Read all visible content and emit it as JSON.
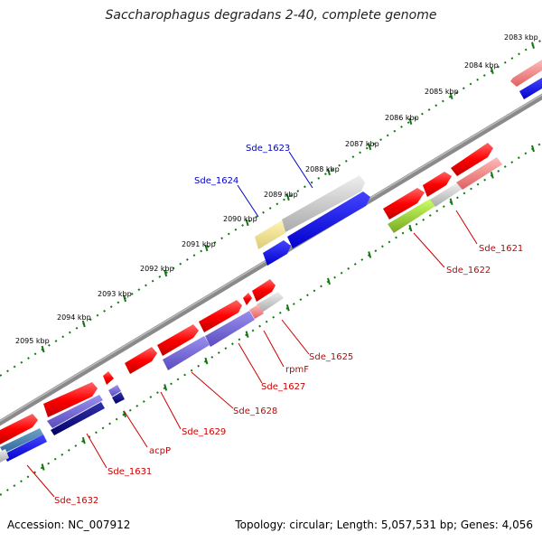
{
  "title": "Saccharophagus degradans 2-40, complete genome",
  "footer": {
    "accession": "Accession: NC_007912",
    "summary": "Topology: circular; Length: 5,057,531 bp; Genes: 4,056"
  },
  "ticks": [
    {
      "label": "2083 kbp"
    },
    {
      "label": "2084 kbp"
    },
    {
      "label": "2085 kbp"
    },
    {
      "label": "2086 kbp"
    },
    {
      "label": "2087 kbp"
    },
    {
      "label": "2088 kbp"
    },
    {
      "label": "2089 kbp"
    },
    {
      "label": "2090 kbp"
    },
    {
      "label": "2091 kbp"
    },
    {
      "label": "2092 kbp"
    },
    {
      "label": "2093 kbp"
    },
    {
      "label": "2094 kbp"
    },
    {
      "label": "2095 kbp"
    }
  ],
  "gene_labels": [
    {
      "text": "Sde_1623",
      "strand": "forward"
    },
    {
      "text": "Sde_1624",
      "strand": "forward"
    },
    {
      "text": "Sde_1621",
      "strand": "reverse"
    },
    {
      "text": "Sde_1622",
      "strand": "reverse"
    },
    {
      "text": "Sde_1625",
      "strand": "reverse"
    },
    {
      "text": "rpmF",
      "strand": "reverse"
    },
    {
      "text": "Sde_1627",
      "strand": "reverse"
    },
    {
      "text": "Sde_1628",
      "strand": "reverse"
    },
    {
      "text": "Sde_1629",
      "strand": "reverse"
    },
    {
      "text": "acpP",
      "strand": "reverse"
    },
    {
      "text": "Sde_1631",
      "strand": "reverse"
    },
    {
      "text": "Sde_1632",
      "strand": "reverse"
    }
  ],
  "colors": {
    "forward_label": "#0000cc",
    "reverse_label": "#cc0000",
    "backbone": "#888888",
    "tick": "#117711"
  }
}
